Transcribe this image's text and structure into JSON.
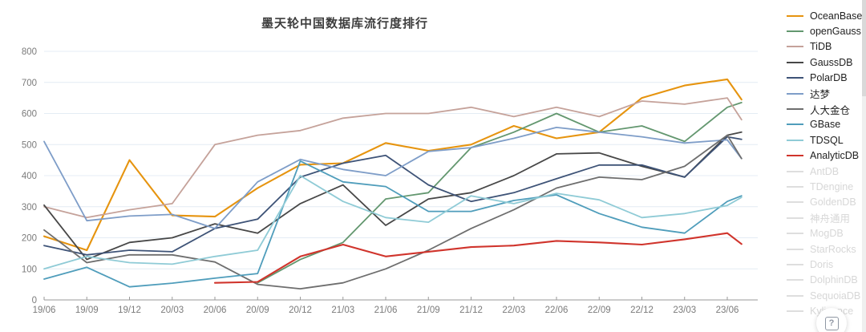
{
  "title": "墨天轮中国数据库流行度排行",
  "help_button": {
    "icon": "question-in-square",
    "glyph": "?"
  },
  "chart_data": {
    "type": "line",
    "title": "墨天轮中国数据库流行度排行",
    "xlabel": "",
    "ylabel": "",
    "ylim": [
      0,
      800
    ],
    "y_ticks": [
      0,
      100,
      200,
      300,
      400,
      500,
      600,
      700,
      800
    ],
    "grid": true,
    "legend_position": "right",
    "x_tick_labels": [
      "19/06",
      "19/09",
      "19/12",
      "20/03",
      "20/06",
      "20/09",
      "20/12",
      "21/03",
      "21/06",
      "21/09",
      "21/12",
      "22/03",
      "22/06",
      "22/09",
      "22/12",
      "23/03",
      "23/06"
    ],
    "x_tick_month_index": [
      0,
      3,
      6,
      9,
      12,
      15,
      18,
      21,
      24,
      27,
      30,
      33,
      36,
      39,
      42,
      45,
      48
    ],
    "x_month_index": [
      0,
      3,
      6,
      9,
      12,
      15,
      18,
      21,
      24,
      27,
      30,
      33,
      36,
      39,
      42,
      45,
      48,
      49
    ],
    "series": [
      {
        "name": "OceanBase",
        "color": "#e6940f",
        "enabled": true,
        "values": [
          205,
          160,
          450,
          272,
          268,
          360,
          435,
          440,
          505,
          480,
          500,
          560,
          520,
          540,
          650,
          690,
          710,
          645
        ]
      },
      {
        "name": "openGauss",
        "color": "#63976f",
        "enabled": true,
        "values": [
          null,
          null,
          null,
          null,
          null,
          55,
          130,
          185,
          325,
          345,
          490,
          540,
          600,
          540,
          560,
          510,
          620,
          635
        ]
      },
      {
        "name": "TiDB",
        "color": "#c5a29a",
        "enabled": true,
        "values": [
          300,
          265,
          290,
          310,
          500,
          530,
          545,
          585,
          600,
          600,
          620,
          590,
          620,
          590,
          640,
          630,
          650,
          580
        ]
      },
      {
        "name": "GaussDB",
        "color": "#474747",
        "enabled": true,
        "values": [
          305,
          130,
          185,
          200,
          245,
          215,
          310,
          370,
          240,
          325,
          345,
          400,
          470,
          473,
          430,
          395,
          530,
          540
        ]
      },
      {
        "name": "PolarDB",
        "color": "#3e5377",
        "enabled": true,
        "values": [
          175,
          145,
          160,
          155,
          230,
          260,
          395,
          440,
          465,
          370,
          317,
          345,
          390,
          434,
          434,
          395,
          525,
          517
        ]
      },
      {
        "name": "达梦",
        "color": "#7e9dc8",
        "enabled": true,
        "values": [
          510,
          255,
          270,
          275,
          230,
          380,
          452,
          420,
          400,
          478,
          490,
          520,
          555,
          540,
          525,
          505,
          515,
          455
        ]
      },
      {
        "name": "人大金仓",
        "color": "#6e6e6e",
        "enabled": true,
        "values": [
          225,
          120,
          145,
          145,
          122,
          50,
          36,
          55,
          100,
          160,
          230,
          290,
          360,
          395,
          387,
          430,
          530,
          455
        ]
      },
      {
        "name": "GBase",
        "color": "#4f9dbb",
        "enabled": true,
        "values": [
          67,
          105,
          42,
          54,
          70,
          85,
          447,
          380,
          365,
          285,
          285,
          320,
          338,
          278,
          234,
          215,
          317,
          335
        ]
      },
      {
        "name": "TDSQL",
        "color": "#8fcbd6",
        "enabled": true,
        "values": [
          100,
          140,
          120,
          115,
          140,
          160,
          400,
          317,
          265,
          250,
          335,
          310,
          343,
          322,
          265,
          278,
          304,
          330
        ]
      },
      {
        "name": "AnalyticDB",
        "color": "#d0342c",
        "enabled": true,
        "values": [
          null,
          null,
          null,
          null,
          55,
          58,
          140,
          178,
          140,
          155,
          170,
          175,
          190,
          185,
          178,
          195,
          215,
          180
        ]
      },
      {
        "name": "AntDB",
        "color": "#dedede",
        "enabled": false,
        "values": null
      },
      {
        "name": "TDengine",
        "color": "#dedede",
        "enabled": false,
        "values": null
      },
      {
        "name": "GoldenDB",
        "color": "#dedede",
        "enabled": false,
        "values": null
      },
      {
        "name": "神舟通用",
        "color": "#dedede",
        "enabled": false,
        "values": null
      },
      {
        "name": "MogDB",
        "color": "#dedede",
        "enabled": false,
        "values": null
      },
      {
        "name": "StarRocks",
        "color": "#dedede",
        "enabled": false,
        "values": null
      },
      {
        "name": "Doris",
        "color": "#dedede",
        "enabled": false,
        "values": null
      },
      {
        "name": "DolphinDB",
        "color": "#dedede",
        "enabled": false,
        "values": null
      },
      {
        "name": "SequoiaDB",
        "color": "#dedede",
        "enabled": false,
        "values": null
      },
      {
        "name": "Kyligence",
        "color": "#dedede",
        "enabled": false,
        "values": null
      }
    ]
  }
}
